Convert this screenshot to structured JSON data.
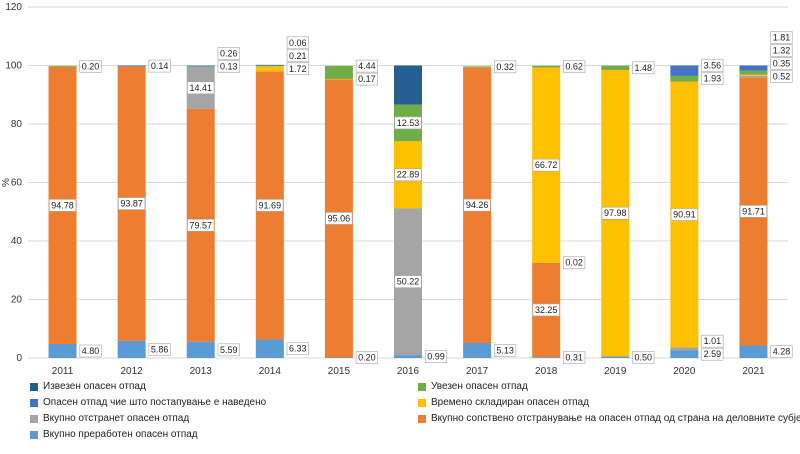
{
  "chart_data": {
    "type": "bar",
    "stacked": true,
    "ylabel": "%",
    "ylim": [
      0,
      120
    ],
    "yticks": [
      0,
      20,
      40,
      60,
      80,
      100,
      120
    ],
    "grid": true,
    "legend_position": "bottom",
    "categories": [
      "2011",
      "2012",
      "2013",
      "2014",
      "2015",
      "2016",
      "2017",
      "2018",
      "2019",
      "2020",
      "2021"
    ],
    "series": [
      {
        "name": "Вкупно преработен опасен отпад",
        "color": "#5b9bd5",
        "values": [
          4.8,
          5.86,
          5.59,
          6.33,
          0.2,
          0.99,
          5.13,
          0.31,
          0.5,
          2.59,
          4.28
        ],
        "labels": [
          "4.80",
          "5.86",
          "5.59",
          "6.33",
          "0.20",
          "0.99",
          "5.13",
          "0.31",
          "0.50",
          "2.59",
          "4.28"
        ]
      },
      {
        "name": "Вкупно сопствено отстранување на опасен отпад од страна на деловните субјекти",
        "color": "#ed7d31",
        "values": [
          94.78,
          93.87,
          79.57,
          91.69,
          95.06,
          0,
          94.26,
          32.25,
          0,
          0,
          91.71
        ],
        "labels": [
          "94.78",
          "93.87",
          "79.57",
          "91.69",
          "95.06",
          "",
          "94.26",
          "32.25",
          "",
          "",
          "91.71"
        ]
      },
      {
        "name": "Вкупно отстранет опасен отпад",
        "color": "#a5a5a5",
        "values": [
          0,
          0,
          14.41,
          0,
          0,
          50.22,
          0,
          0.02,
          0,
          1.01,
          0.52
        ],
        "labels": [
          "",
          "",
          "14.41",
          "",
          "",
          "50.22",
          "",
          "0.02",
          "",
          "1.01",
          "0.52"
        ]
      },
      {
        "name": "Времено складиран опасен отпад",
        "color": "#ffc000",
        "values": [
          0,
          0,
          0,
          1.72,
          0.17,
          22.89,
          0,
          66.72,
          97.98,
          90.91,
          0.35
        ],
        "labels": [
          "",
          "",
          "",
          "1.72",
          "0.17",
          "22.89",
          "",
          "66.72",
          "97.98",
          "90.91",
          "0.35"
        ]
      },
      {
        "name": "Увезен опасен отпад",
        "color": "#70ad47",
        "values": [
          0.2,
          0,
          0.13,
          0.21,
          4.44,
          12.53,
          0.32,
          0.62,
          1.48,
          1.93,
          1.32
        ],
        "labels": [
          "0.20",
          "",
          "0.13",
          "0.21",
          "4.44",
          "12.53",
          "0.32",
          "0.62",
          "1.48",
          "1.93",
          "1.32"
        ]
      },
      {
        "name": "Опасен отпад чие што постапување е наведено",
        "color": "#4472c4",
        "values": [
          0,
          0.14,
          0.26,
          0.06,
          0,
          0,
          0,
          0,
          0,
          3.56,
          1.81
        ],
        "labels": [
          "",
          "0.14",
          "0.26",
          "0.06",
          "",
          "",
          "",
          "",
          "",
          "3.56",
          "1.81"
        ]
      },
      {
        "name": "Извезен опасен отпад",
        "color": "#255e91",
        "values": [
          0,
          0,
          0,
          0,
          0,
          13.37,
          0,
          0,
          0,
          0,
          0
        ],
        "labels": [
          "",
          "",
          "",
          "",
          "",
          "",
          "",
          "",
          "",
          "",
          ""
        ]
      }
    ]
  }
}
